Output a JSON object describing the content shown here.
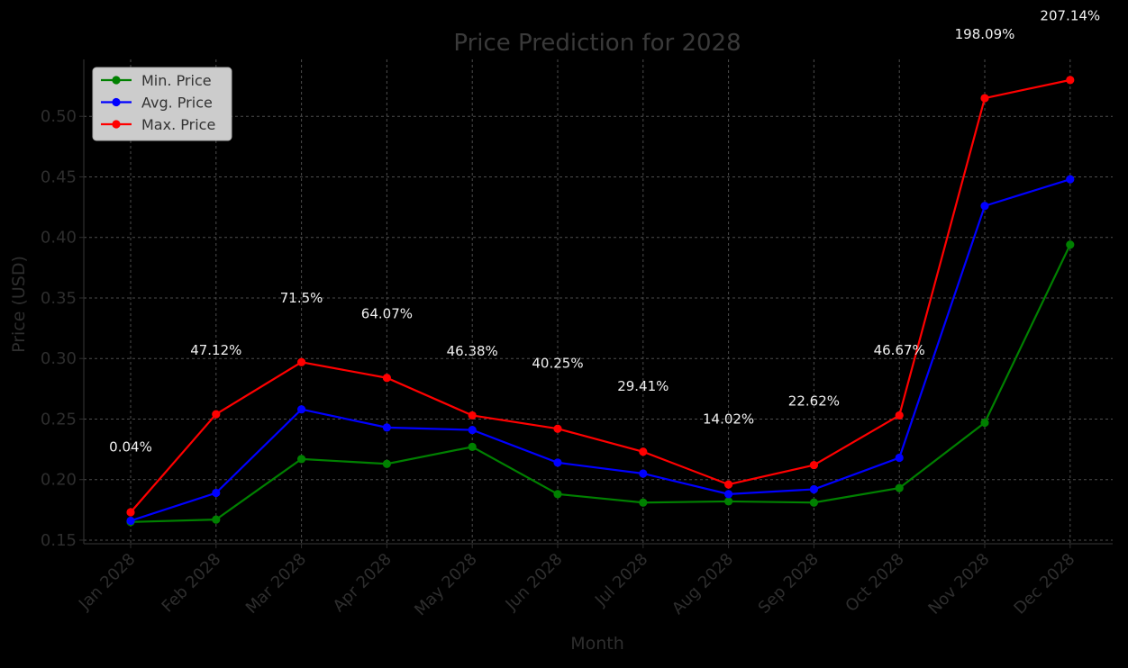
{
  "chart_data": {
    "type": "line",
    "title": "Price Prediction for 2028",
    "xlabel": "Month",
    "ylabel": "Price (USD)",
    "categories": [
      "Jan 2028",
      "Feb 2028",
      "Mar 2028",
      "Apr 2028",
      "May 2028",
      "Jun 2028",
      "Jul 2028",
      "Aug 2028",
      "Sep 2028",
      "Oct 2028",
      "Nov 2028",
      "Dec 2028"
    ],
    "yticks": [
      "0.15",
      "0.20",
      "0.25",
      "0.30",
      "0.35",
      "0.40",
      "0.45",
      "0.50"
    ],
    "ylim": [
      0.147,
      0.547
    ],
    "grid": true,
    "legend_position": "top-left",
    "series": [
      {
        "name": "Min. Price",
        "color": "#008000",
        "values": [
          0.165,
          0.167,
          0.217,
          0.213,
          0.227,
          0.188,
          0.181,
          0.182,
          0.181,
          0.193,
          0.247,
          0.394
        ]
      },
      {
        "name": "Avg. Price",
        "color": "#0000ff",
        "values": [
          0.166,
          0.189,
          0.258,
          0.243,
          0.241,
          0.214,
          0.205,
          0.188,
          0.192,
          0.218,
          0.426,
          0.448
        ]
      },
      {
        "name": "Max. Price",
        "color": "#ff0000",
        "values": [
          0.173,
          0.254,
          0.297,
          0.284,
          0.253,
          0.242,
          0.223,
          0.196,
          0.212,
          0.253,
          0.515,
          0.53
        ]
      }
    ],
    "annotations": [
      {
        "category": "Jan 2028",
        "text": "0.04%",
        "y": 0.227
      },
      {
        "category": "Feb 2028",
        "text": "47.12%",
        "y": 0.307
      },
      {
        "category": "Mar 2028",
        "text": "71.5%",
        "y": 0.35
      },
      {
        "category": "Apr 2028",
        "text": "64.07%",
        "y": 0.337
      },
      {
        "category": "May 2028",
        "text": "46.38%",
        "y": 0.306
      },
      {
        "category": "Jun 2028",
        "text": "40.25%",
        "y": 0.296
      },
      {
        "category": "Jul 2028",
        "text": "29.41%",
        "y": 0.277
      },
      {
        "category": "Aug 2028",
        "text": "14.02%",
        "y": 0.25
      },
      {
        "category": "Sep 2028",
        "text": "22.62%",
        "y": 0.265
      },
      {
        "category": "Oct 2028",
        "text": "46.67%",
        "y": 0.307
      },
      {
        "category": "Nov 2028",
        "text": "198.09%",
        "y": 0.568
      },
      {
        "category": "Dec 2028",
        "text": "207.14%",
        "y": 0.583
      }
    ]
  }
}
